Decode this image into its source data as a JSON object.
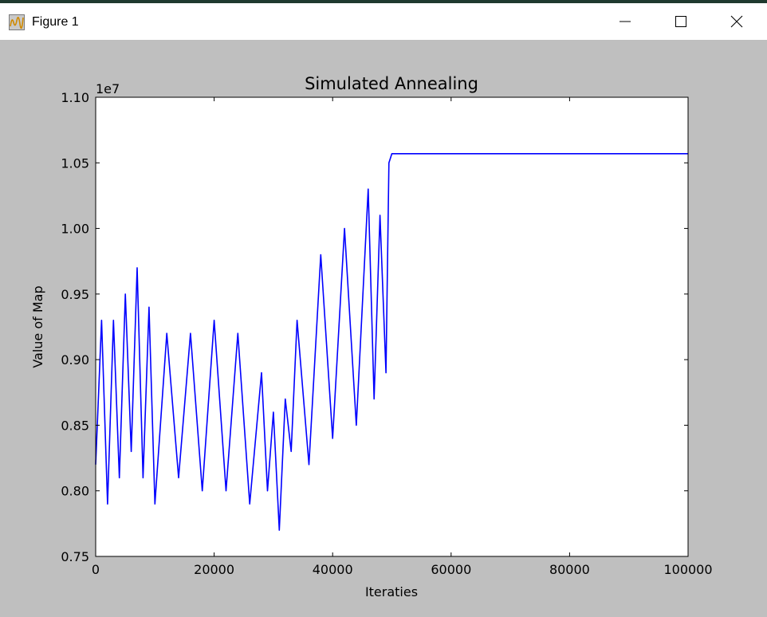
{
  "window": {
    "title": "Figure 1",
    "icon": "matplotlib-figure-icon",
    "controls": [
      "minimize-icon",
      "maximize-icon",
      "close-icon"
    ]
  },
  "colors": {
    "line": "#0000ff",
    "figure_bg": "#bfbfbf",
    "axes_bg": "#ffffff"
  },
  "chart_data": {
    "type": "line",
    "title": "Simulated Annealing",
    "xlabel": "Iteraties",
    "ylabel": "Value of Map",
    "y_offset_label": "1e7",
    "xlim": [
      0,
      100000
    ],
    "ylim": [
      0.75,
      1.1
    ],
    "xticks": [
      0,
      20000,
      40000,
      60000,
      80000,
      100000
    ],
    "xtick_labels": [
      "0",
      "20000",
      "40000",
      "60000",
      "80000",
      "100000"
    ],
    "yticks": [
      0.75,
      0.8,
      0.85,
      0.9,
      0.95,
      1.0,
      1.05,
      1.1
    ],
    "ytick_labels": [
      "0.75",
      "0.80",
      "0.85",
      "0.90",
      "0.95",
      "1.00",
      "1.05",
      "1.10"
    ],
    "grid": false,
    "series": [
      {
        "color": "#0000ff",
        "x": [
          0,
          1000,
          2000,
          3000,
          4000,
          5000,
          6000,
          7000,
          8000,
          9000,
          10000,
          12000,
          14000,
          16000,
          18000,
          20000,
          22000,
          24000,
          26000,
          28000,
          29000,
          30000,
          31000,
          32000,
          33000,
          34000,
          36000,
          38000,
          40000,
          42000,
          44000,
          46000,
          47000,
          48000,
          49000,
          49500,
          50000,
          100000
        ],
        "y": [
          0.82,
          0.93,
          0.79,
          0.93,
          0.81,
          0.95,
          0.83,
          0.97,
          0.81,
          0.94,
          0.79,
          0.92,
          0.81,
          0.92,
          0.8,
          0.93,
          0.8,
          0.92,
          0.79,
          0.89,
          0.8,
          0.86,
          0.77,
          0.87,
          0.83,
          0.93,
          0.82,
          0.98,
          0.84,
          1.0,
          0.85,
          1.03,
          0.87,
          1.01,
          0.89,
          1.05,
          1.057,
          1.057
        ]
      }
    ]
  }
}
